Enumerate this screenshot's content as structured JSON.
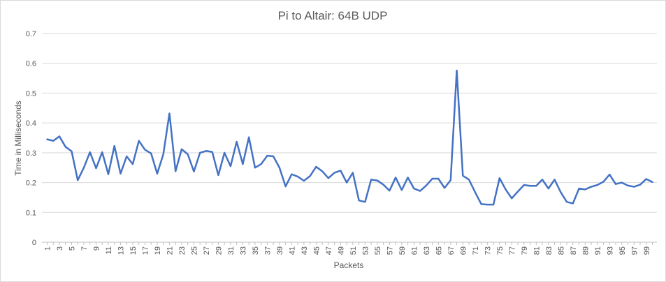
{
  "chart_data": {
    "type": "line",
    "title": "Pi to Altair: 64B UDP",
    "xlabel": "Packets",
    "ylabel": "Time in Milliseconds",
    "ylim": [
      0,
      0.7
    ],
    "yticks": [
      "0",
      "0.1",
      "0.2",
      "0.3",
      "0.4",
      "0.5",
      "0.6",
      "0.7"
    ],
    "xtick_step": 2,
    "grid": true,
    "legend": "none",
    "series": [
      {
        "color": "#4472c4",
        "x": [
          1,
          2,
          3,
          4,
          5,
          6,
          7,
          8,
          9,
          10,
          11,
          12,
          13,
          14,
          15,
          16,
          17,
          18,
          19,
          20,
          21,
          22,
          23,
          24,
          25,
          26,
          27,
          28,
          29,
          30,
          31,
          32,
          33,
          34,
          35,
          36,
          37,
          38,
          39,
          40,
          41,
          42,
          43,
          44,
          45,
          46,
          47,
          48,
          49,
          50,
          51,
          52,
          53,
          54,
          55,
          56,
          57,
          58,
          59,
          60,
          61,
          62,
          63,
          64,
          65,
          66,
          67,
          68,
          69,
          70,
          71,
          72,
          73,
          74,
          75,
          76,
          77,
          78,
          79,
          80,
          81,
          82,
          83,
          84,
          85,
          86,
          87,
          88,
          89,
          90,
          91,
          92,
          93,
          94,
          95,
          96,
          97,
          98,
          99,
          100
        ],
        "values": [
          0.345,
          0.34,
          0.355,
          0.32,
          0.305,
          0.208,
          0.25,
          0.302,
          0.248,
          0.302,
          0.228,
          0.323,
          0.23,
          0.288,
          0.262,
          0.34,
          0.31,
          0.298,
          0.23,
          0.295,
          0.432,
          0.238,
          0.312,
          0.295,
          0.237,
          0.3,
          0.306,
          0.303,
          0.225,
          0.3,
          0.255,
          0.337,
          0.262,
          0.352,
          0.25,
          0.262,
          0.29,
          0.288,
          0.25,
          0.187,
          0.228,
          0.22,
          0.206,
          0.222,
          0.253,
          0.238,
          0.215,
          0.233,
          0.24,
          0.2,
          0.233,
          0.14,
          0.135,
          0.21,
          0.207,
          0.193,
          0.173,
          0.217,
          0.175,
          0.217,
          0.18,
          0.172,
          0.19,
          0.213,
          0.213,
          0.182,
          0.208,
          0.576,
          0.223,
          0.21,
          0.168,
          0.128,
          0.126,
          0.126,
          0.215,
          0.177,
          0.147,
          0.17,
          0.192,
          0.189,
          0.189,
          0.21,
          0.18,
          0.21,
          0.168,
          0.135,
          0.13,
          0.18,
          0.177,
          0.186,
          0.192,
          0.203,
          0.227,
          0.195,
          0.2,
          0.19,
          0.186,
          0.193,
          0.212,
          0.202
        ]
      }
    ]
  }
}
